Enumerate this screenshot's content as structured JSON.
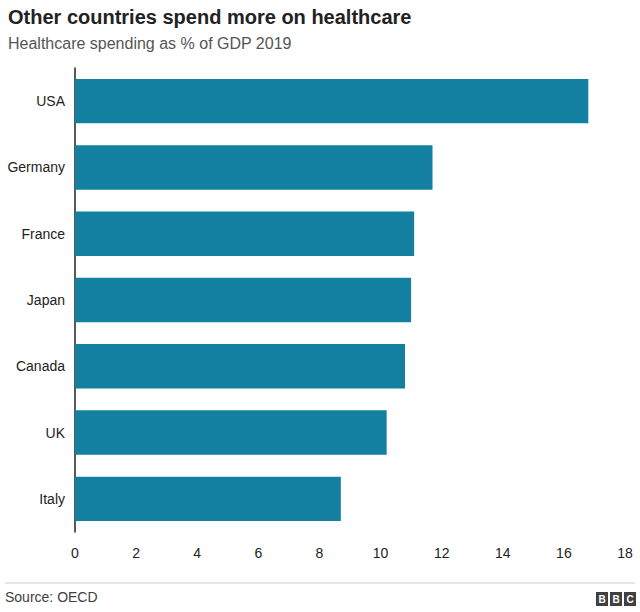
{
  "chart_data": {
    "type": "bar",
    "orientation": "horizontal",
    "title": "Other countries spend more on healthcare",
    "subtitle": "Healthcare spending as % of GDP 2019",
    "source": "Source: OECD",
    "credit": "BBC",
    "categories": [
      "USA",
      "Germany",
      "France",
      "Japan",
      "Canada",
      "UK",
      "Italy"
    ],
    "values": [
      16.8,
      11.7,
      11.1,
      11.0,
      10.8,
      10.2,
      8.7
    ],
    "color": "#1380a1",
    "xlim": [
      0,
      18
    ],
    "xticks": [
      0,
      2,
      4,
      6,
      8,
      10,
      12,
      14,
      16,
      18
    ],
    "grid": false
  }
}
